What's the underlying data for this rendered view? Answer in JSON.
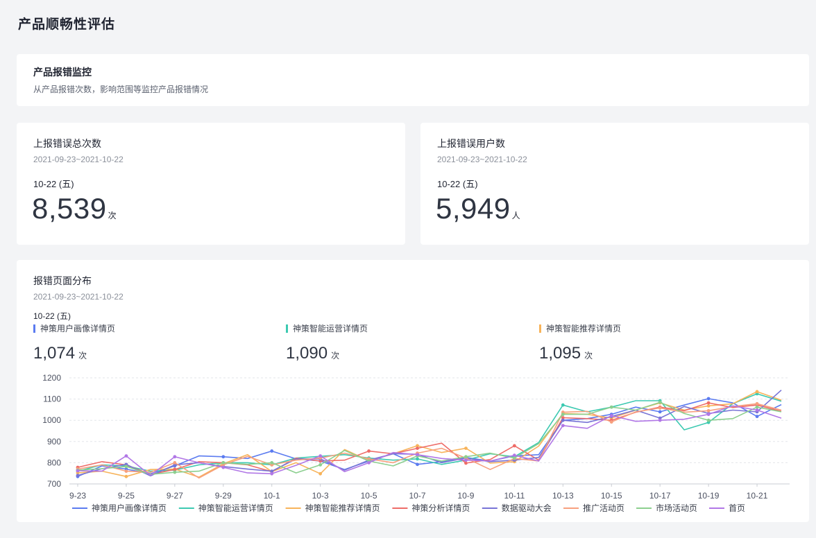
{
  "page": {
    "title": "产品顺畅性评估"
  },
  "section": {
    "title": "产品报错监控",
    "description": "从产品报错次数，影响范围等监控产品报错情况"
  },
  "metrics": [
    {
      "title": "上报错误总次数",
      "range": "2021-09-23~2021-10-22",
      "date": "10-22 (五)",
      "value": "8,539",
      "unit": "次"
    },
    {
      "title": "上报错误用户数",
      "range": "2021-09-23~2021-10-22",
      "date": "10-22 (五)",
      "value": "5,949",
      "unit": "人"
    }
  ],
  "chart_card": {
    "title": "报错页面分布",
    "range": "2021-09-23~2021-10-22",
    "date": "10-22 (五)",
    "kpis": [
      {
        "label": "神策用户画像详情页",
        "value": "1,074",
        "unit": "次",
        "color": "#5b7bf0"
      },
      {
        "label": "神策智能运营详情页",
        "value": "1,090",
        "unit": "次",
        "color": "#3cc9b1"
      },
      {
        "label": "神策智能推荐详情页",
        "value": "1,095",
        "unit": "次",
        "color": "#f7b35a"
      }
    ]
  },
  "chart_data": {
    "type": "line",
    "x": [
      "9-23",
      "9-24",
      "9-25",
      "9-26",
      "9-27",
      "9-28",
      "9-29",
      "9-30",
      "10-1",
      "10-2",
      "10-3",
      "10-4",
      "10-5",
      "10-6",
      "10-7",
      "10-8",
      "10-9",
      "10-10",
      "10-11",
      "10-12",
      "10-13",
      "10-14",
      "10-15",
      "10-16",
      "10-17",
      "10-18",
      "10-19",
      "10-20",
      "10-21",
      "10-22"
    ],
    "tick_labels": [
      "9-23",
      "9-25",
      "9-27",
      "9-29",
      "10-1",
      "10-3",
      "10-5",
      "10-7",
      "10-9",
      "10-11",
      "10-13",
      "10-15",
      "10-17",
      "10-19",
      "10-21"
    ],
    "ylim": [
      700,
      1200
    ],
    "yticks": [
      700,
      800,
      900,
      1000,
      1100,
      1200
    ],
    "grid": true,
    "legend_position": "bottom",
    "series": [
      {
        "name": "神策用户画像详情页",
        "color": "#5b7bf0",
        "values": [
          735,
          785,
          770,
          748,
          785,
          832,
          828,
          820,
          855,
          818,
          808,
          768,
          808,
          842,
          792,
          805,
          825,
          808,
          832,
          838,
          1000,
          1008,
          1028,
          1062,
          1040,
          1072,
          1102,
          1082,
          1018,
          1074
        ]
      },
      {
        "name": "神策智能运营详情页",
        "color": "#3cc9b1",
        "values": [
          760,
          790,
          785,
          760,
          765,
          790,
          800,
          800,
          790,
          822,
          830,
          838,
          822,
          812,
          818,
          792,
          812,
          842,
          828,
          895,
          1072,
          1040,
          1062,
          1092,
          1092,
          955,
          990,
          1078,
          1125,
          1090
        ]
      },
      {
        "name": "神策智能推荐详情页",
        "color": "#f7b35a",
        "values": [
          752,
          760,
          735,
          768,
          770,
          732,
          795,
          838,
          758,
          800,
          748,
          862,
          810,
          842,
          880,
          848,
          868,
          798,
          805,
          878,
          1032,
          1028,
          1010,
          1048,
          1082,
          1048,
          1068,
          1078,
          1135,
          1095
        ]
      },
      {
        "name": "神策分析详情页",
        "color": "#ee6c68",
        "values": [
          778,
          805,
          790,
          745,
          768,
          805,
          800,
          790,
          758,
          822,
          808,
          812,
          855,
          842,
          868,
          892,
          798,
          815,
          880,
          812,
          1012,
          1008,
          1000,
          1038,
          1062,
          1045,
          1082,
          1060,
          1072,
          1042
        ]
      },
      {
        "name": "数据驱动大会",
        "color": "#7874d6",
        "values": [
          740,
          772,
          792,
          738,
          790,
          800,
          782,
          770,
          760,
          818,
          818,
          765,
          812,
          842,
          840,
          800,
          822,
          805,
          812,
          825,
          1000,
          990,
          1018,
          1048,
          1010,
          1065,
          1032,
          1048,
          1040,
          1142
        ]
      },
      {
        "name": "推广活动页",
        "color": "#f7a07e",
        "values": [
          770,
          790,
          760,
          755,
          800,
          728,
          790,
          830,
          790,
          812,
          822,
          845,
          818,
          800,
          845,
          868,
          822,
          768,
          820,
          808,
          1038,
          1042,
          992,
          1040,
          1058,
          1038,
          1045,
          1065,
          1078,
          1048
        ]
      },
      {
        "name": "市场活动页",
        "color": "#8ccf8f",
        "values": [
          765,
          772,
          782,
          745,
          755,
          760,
          800,
          792,
          800,
          752,
          790,
          858,
          808,
          785,
          832,
          808,
          828,
          845,
          822,
          890,
          1028,
          1028,
          1062,
          1048,
          1085,
          1032,
          1000,
          1008,
          1062,
          1040
        ]
      },
      {
        "name": "首页",
        "color": "#b177e6",
        "values": [
          762,
          760,
          832,
          740,
          828,
          800,
          778,
          752,
          748,
          788,
          832,
          758,
          800,
          848,
          838,
          820,
          812,
          808,
          835,
          808,
          975,
          962,
          1022,
          995,
          1000,
          1005,
          1028,
          1068,
          1048,
          1010
        ]
      }
    ]
  }
}
